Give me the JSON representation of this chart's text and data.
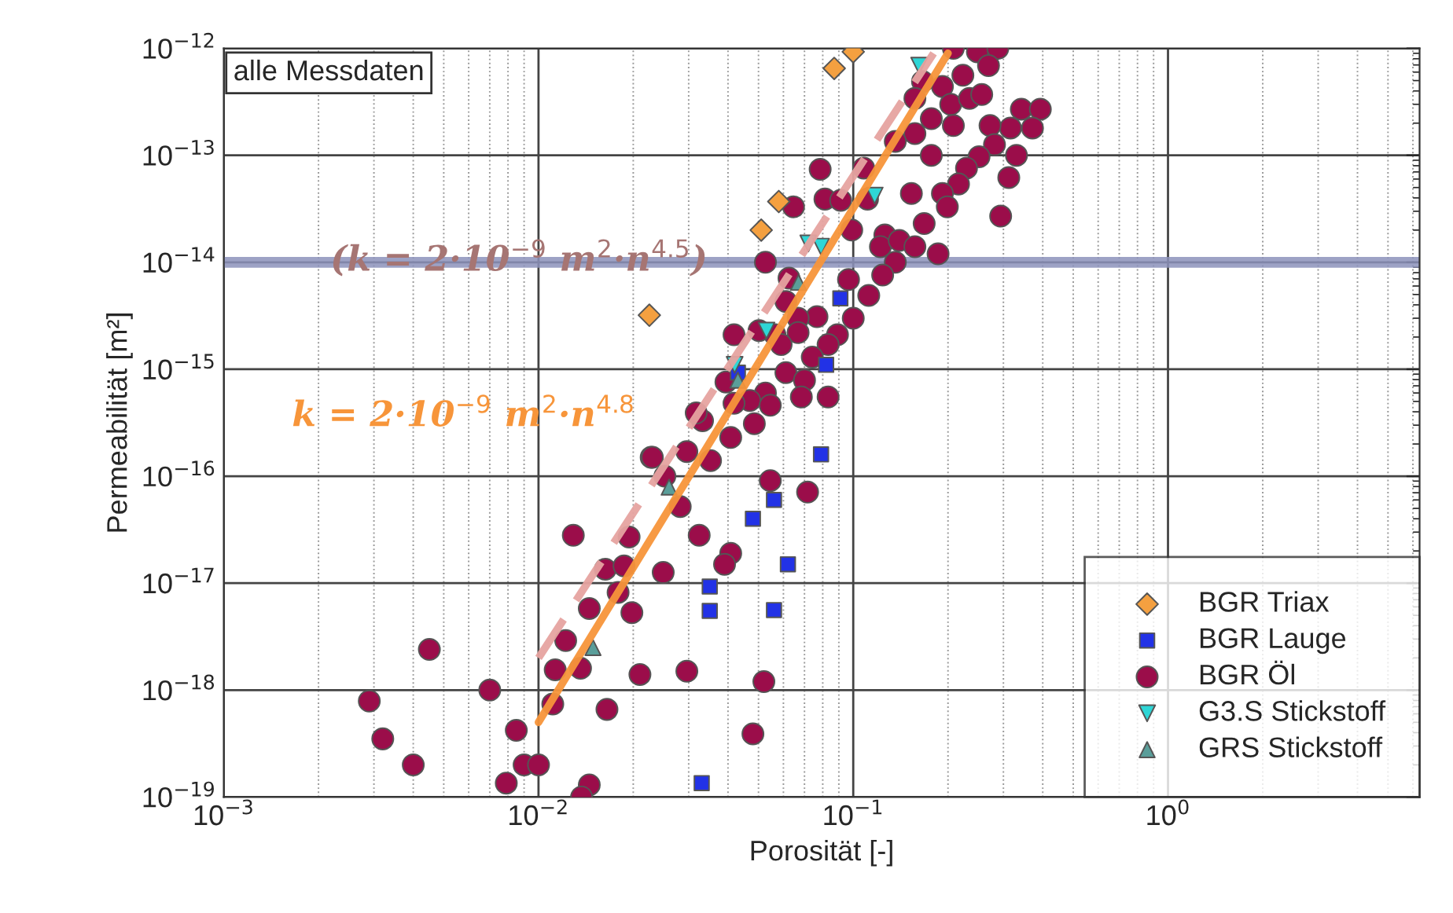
{
  "chart_data": {
    "type": "scatter",
    "xlabel": "Porosität [-]",
    "ylabel": "Permeabilität [m²]",
    "log": "xy",
    "grid": true,
    "legend": "bottom right",
    "xlim": [
      0.001,
      6.3
    ],
    "ylim": [
      1e-19,
      1e-12
    ],
    "xticks": [
      {
        "value": 0.001,
        "label": "10$^{−3}$"
      },
      {
        "value": 0.01,
        "label": "10$^{−2}$"
      },
      {
        "value": 0.1,
        "label": "10$^{−1}$"
      },
      {
        "value": 1,
        "label": "10$^{0}$"
      }
    ],
    "yticks": [
      {
        "value": 1e-19,
        "label": "10$^{−19}$"
      },
      {
        "value": 1e-18,
        "label": "10$^{−18}$"
      },
      {
        "value": 1e-17,
        "label": "10$^{−17}$"
      },
      {
        "value": 1e-16,
        "label": "10$^{−16}$"
      },
      {
        "value": 1e-15,
        "label": "10$^{−15}$"
      },
      {
        "value": 1e-14,
        "label": "10$^{−14}$"
      },
      {
        "value": 1e-13,
        "label": "10$^{−13}$"
      },
      {
        "value": 1e-12,
        "label": "10$^{−12}$"
      }
    ],
    "ref_lines": [
      {
        "axis": "y",
        "value": 1e-14,
        "color": "#8c92bb"
      }
    ],
    "annotations": [
      "alle Messdaten",
      "(k = 2·10$^{−9}$ m$^{2}$·n$^{4.5}$)",
      "k = 2·10$^{−9}$ m$^{2}$·n$^{4.8}$"
    ],
    "series": [
      {
        "type": "line",
        "line_style": "dashed",
        "marker": "none",
        "color": "#e6a3a0",
        "x": [
          0.01,
          0.18
        ],
        "values": [
          2e-18,
          9e-13
        ]
      },
      {
        "type": "line",
        "line_style": "solid",
        "marker": "none",
        "color": "#f7953a",
        "x": [
          0.01,
          0.2
        ],
        "values": [
          5e-19,
          9e-13
        ]
      },
      {
        "name": "BGR Triax",
        "marker": "diamond",
        "color": "#f4a040",
        "x": [
          0.1,
          0.087,
          0.058,
          0.051,
          0.0225
        ],
        "values": [
          9.3e-13,
          6.5e-13,
          3.7e-14,
          2e-14,
          3.2e-15
        ]
      },
      {
        "name": "BGR Lauge",
        "marker": "square",
        "color": "#2232e6",
        "x": [
          0.091,
          0.082,
          0.043,
          0.079,
          0.056,
          0.048,
          0.062,
          0.035,
          0.035,
          0.056,
          0.033
        ],
        "values": [
          4.6e-15,
          1.1e-15,
          9.3e-16,
          1.6e-16,
          6e-17,
          4e-17,
          1.5e-17,
          9.3e-18,
          5.5e-18,
          5.6e-18,
          1.35e-19
        ]
      },
      {
        "name": "BGR Öl",
        "marker": "circle",
        "color": "#9b0d4a",
        "x": [
          0.0228,
          0.0129,
          0.0194,
          0.0163,
          0.0187,
          0.0145,
          0.0198,
          0.0179,
          0.0122,
          0.0113,
          0.0136,
          0.021,
          0.0111,
          0.0165,
          0.0045,
          0.007,
          0.0029,
          0.0032,
          0.004,
          0.0085,
          0.009,
          0.01,
          0.0079,
          0.0145,
          0.0137,
          0.0332,
          0.0485,
          0.0408,
          0.023,
          0.0296,
          0.0352,
          0.0252,
          0.0282,
          0.0545,
          0.0716,
          0.0324,
          0.0408,
          0.039,
          0.0249,
          0.0296,
          0.052,
          0.048,
          0.208,
          0.248,
          0.288,
          0.269,
          0.223,
          0.192,
          0.166,
          0.157,
          0.204,
          0.177,
          0.234,
          0.256,
          0.208,
          0.157,
          0.136,
          0.342,
          0.393,
          0.371,
          0.316,
          0.272,
          0.281,
          0.33,
          0.251,
          0.229,
          0.312,
          0.216,
          0.192,
          0.199,
          0.294,
          0.153,
          0.168,
          0.177,
          0.108,
          0.0785,
          0.0646,
          0.0813,
          0.0912,
          0.0989,
          0.111,
          0.126,
          0.122,
          0.14,
          0.157,
          0.186,
          0.136,
          0.124,
          0.0966,
          0.112,
          0.1,
          0.0767,
          0.0611,
          0.0625,
          0.0526,
          0.0668,
          0.0564,
          0.0668,
          0.0891,
          0.0832,
          0.0741,
          0.059,
          0.0418,
          0.0502,
          0.0611,
          0.07,
          0.0832,
          0.0684,
          0.0526,
          0.0394,
          0.0469,
          0.0545,
          0.0317,
          0.0418
        ],
        "values": [
          1.5e-16,
          2.8e-17,
          2.7e-17,
          1.35e-17,
          1.45e-17,
          5.8e-18,
          5.3e-18,
          8.2e-18,
          2.9e-18,
          1.55e-18,
          1.6e-18,
          1.4e-18,
          7.4e-19,
          6.6e-19,
          2.4e-18,
          1e-18,
          7.9e-19,
          3.5e-19,
          2e-19,
          4.2e-19,
          2e-19,
          2e-19,
          1.35e-19,
          1.3e-19,
          1e-19,
          3.3e-16,
          3.1e-16,
          2.3e-16,
          1.5e-16,
          1.7e-16,
          1.4e-16,
          1e-16,
          5.2e-17,
          9.1e-17,
          7.1e-17,
          2.8e-17,
          1.9e-17,
          1.5e-17,
          1.26e-17,
          1.5e-18,
          1.2e-18,
          3.9e-19,
          1e-12,
          9.3e-13,
          1e-12,
          6.9e-13,
          5.6e-13,
          4.4e-13,
          4.9e-13,
          3.4e-13,
          3e-13,
          2.2e-13,
          3.4e-13,
          3.7e-13,
          1.9e-13,
          1.6e-13,
          1.35e-13,
          2.7e-13,
          2.7e-13,
          1.8e-13,
          1.8e-13,
          1.9e-13,
          1.26e-13,
          1e-13,
          9.7e-14,
          7.6e-14,
          6.2e-14,
          5.4e-14,
          4.4e-14,
          3.3e-14,
          2.7e-14,
          4.4e-14,
          2.3e-14,
          1e-13,
          7.6e-14,
          7.4e-14,
          3.3e-14,
          3.9e-14,
          3.8e-14,
          2e-14,
          3.9e-14,
          1.8e-14,
          1.4e-14,
          1.6e-14,
          1.4e-14,
          1.2e-14,
          1e-14,
          7.6e-15,
          6.9e-15,
          4.9e-15,
          3e-15,
          3.1e-15,
          4.3e-15,
          7.1e-15,
          1e-14,
          3e-15,
          2.1e-15,
          2.2e-15,
          2.1e-15,
          1.7e-15,
          1.3e-15,
          1.7e-15,
          2.1e-15,
          2.3e-15,
          9.3e-16,
          7.9e-16,
          5.5e-16,
          5.5e-16,
          6e-16,
          7.6e-16,
          5.1e-16,
          4.6e-16,
          3.9e-16,
          4.8e-16
        ]
      },
      {
        "name": "G3.S Stickstoff",
        "marker": "triangle_down",
        "color": "#2ed6d6",
        "x": [
          0.162,
          0.117,
          0.072,
          0.079,
          0.053,
          0.042
        ],
        "values": [
          6.9e-13,
          4.2e-14,
          1.5e-14,
          1.4e-14,
          2.3e-15,
          1.1e-15
        ]
      },
      {
        "name": "GRS Stickstoff",
        "marker": "triangle",
        "color": "#5a9e9a",
        "x": [
          0.067,
          0.043,
          0.0149,
          0.026
        ],
        "values": [
          6.5e-15,
          7.9e-16,
          2.5e-18,
          7.9e-17
        ]
      }
    ]
  }
}
